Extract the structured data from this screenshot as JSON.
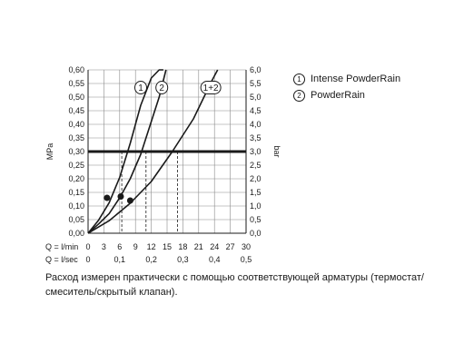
{
  "chart_data": {
    "type": "line",
    "ylabel_left": "MPa",
    "ylabel_right": "bar",
    "ylim": [
      0,
      0.6
    ],
    "yticks_left": [
      "0,00",
      "0,05",
      "0,10",
      "0,15",
      "0,20",
      "0,25",
      "0,30",
      "0,35",
      "0,40",
      "0,45",
      "0,50",
      "0,55",
      "0,60"
    ],
    "yticks_right": [
      "0,0",
      "0,5",
      "1,0",
      "1,5",
      "2,0",
      "2,5",
      "3,0",
      "3,5",
      "4,0",
      "4,5",
      "5,0",
      "5,5",
      "6,0"
    ],
    "xlim": [
      0,
      30
    ],
    "x_row1_label": "Q = l/min",
    "x_row1_ticks": [
      "0",
      "3",
      "6",
      "9",
      "12",
      "15",
      "18",
      "21",
      "24",
      "27",
      "30"
    ],
    "x_row2_label": "Q = l/sec",
    "x_row2_ticks": [
      "0",
      "0,1",
      "0,2",
      "0,3",
      "0,4",
      "0,5"
    ],
    "grid": true,
    "reference_line": {
      "y": 0.3
    },
    "series": [
      {
        "name": "1",
        "x": [
          0,
          2,
          4,
          6,
          8,
          10,
          12,
          13.5,
          14.3
        ],
        "y": [
          0,
          0.048,
          0.112,
          0.205,
          0.33,
          0.47,
          0.57,
          0.6,
          0.6
        ],
        "operating_point": [
          3.6,
          0.13
        ],
        "dropline_x": 6.4
      },
      {
        "name": "2",
        "x": [
          0,
          2,
          4,
          6,
          8,
          10,
          12,
          13.5,
          14.8
        ],
        "y": [
          0,
          0.034,
          0.072,
          0.13,
          0.2,
          0.29,
          0.41,
          0.5,
          0.6
        ],
        "operating_point": [
          6.2,
          0.135
        ],
        "dropline_x": 11.0
      },
      {
        "name": "1+2",
        "x": [
          0,
          4,
          8,
          12,
          16,
          20,
          22,
          23.5,
          24.6
        ],
        "y": [
          0,
          0.046,
          0.11,
          0.19,
          0.3,
          0.42,
          0.5,
          0.56,
          0.6
        ],
        "operating_point": [
          8.0,
          0.12
        ],
        "dropline_x": 17.0
      }
    ],
    "curve_labels": [
      {
        "text": "1",
        "x": 10.0,
        "y": 0.535
      },
      {
        "text": "2",
        "x": 14.0,
        "y": 0.535
      },
      {
        "text": "1+2",
        "x": 23.3,
        "y": 0.535
      }
    ]
  },
  "legend": [
    {
      "marker": "1",
      "label": "Intense PowderRain"
    },
    {
      "marker": "2",
      "label": "PowderRain"
    }
  ],
  "note": "Расход измерен практически с помощью соответствующей арматуры (термостат/смеситель/скрытый клапан)."
}
